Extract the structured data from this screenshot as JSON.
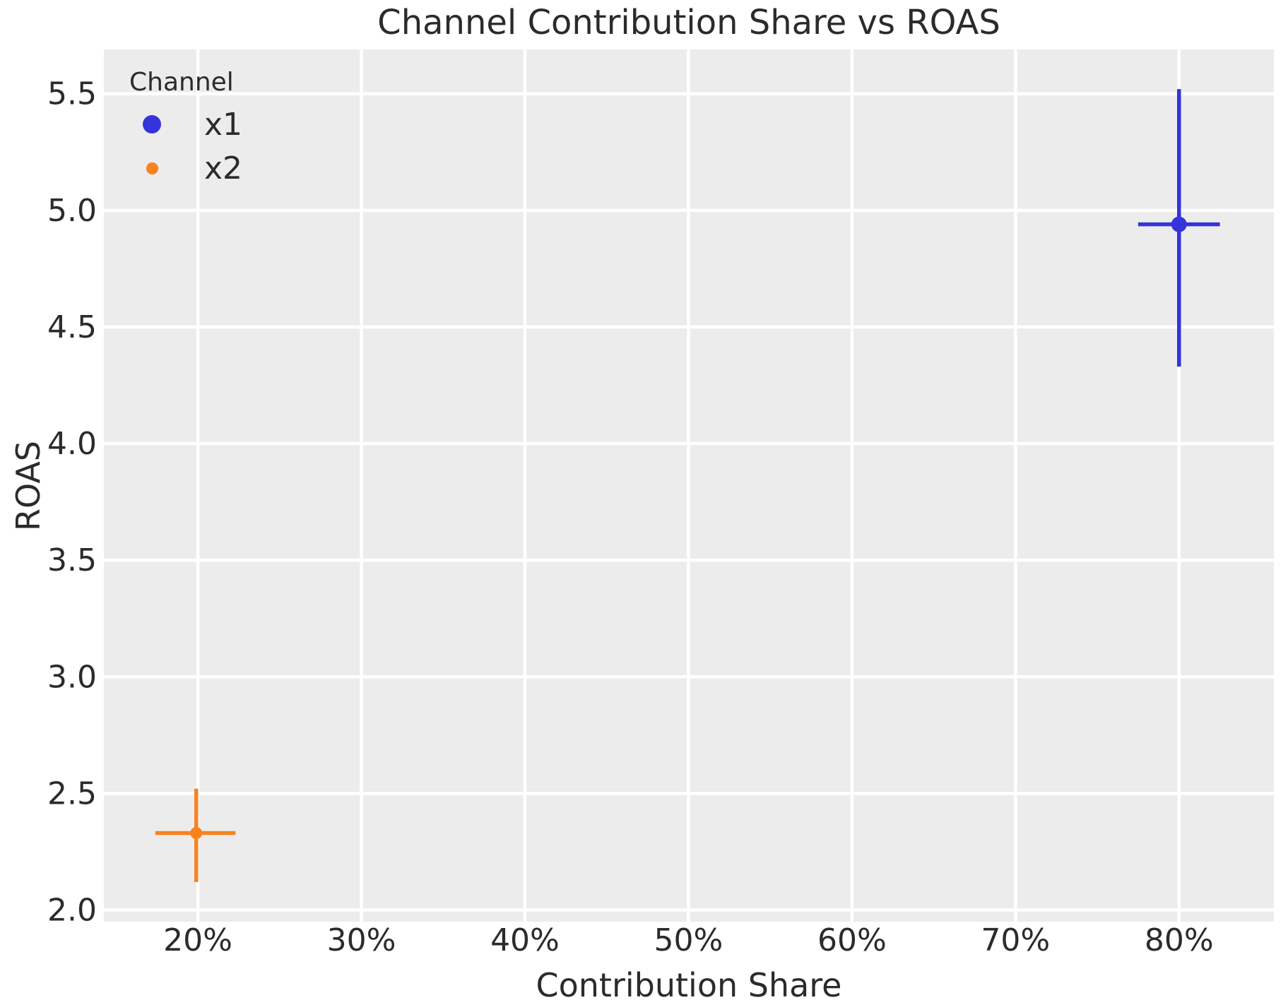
{
  "title": "Channel Contribution Share vs ROAS",
  "x_axis_label": "Contribution Share",
  "y_axis_label": "ROAS",
  "legend": {
    "title": "Channel",
    "position": "upper-left",
    "items": [
      {
        "label": "x1",
        "color": "#3533db",
        "marker_diameter": 26
      },
      {
        "label": "x2",
        "color": "#f8821e",
        "marker_diameter": 17
      }
    ]
  },
  "chart_data": {
    "type": "scatter",
    "title": "Channel Contribution Share vs ROAS",
    "xlabel": "Contribution Share",
    "ylabel": "ROAS",
    "grid": true,
    "plot_bg_color": "#ececec",
    "grid_color": "#ffffff",
    "text_color": "#2b2b2b",
    "xlim": [
      14.25,
      85.8
    ],
    "ylim": [
      1.95,
      5.69
    ],
    "x_unit": "percent",
    "x_ticks": [
      {
        "value": 20,
        "label": "20%"
      },
      {
        "value": 30,
        "label": "30%"
      },
      {
        "value": 40,
        "label": "40%"
      },
      {
        "value": 50,
        "label": "50%"
      },
      {
        "value": 60,
        "label": "60%"
      },
      {
        "value": 70,
        "label": "70%"
      },
      {
        "value": 80,
        "label": "80%"
      }
    ],
    "y_ticks": [
      {
        "value": 2.0,
        "label": "2.0"
      },
      {
        "value": 2.5,
        "label": "2.5"
      },
      {
        "value": 3.0,
        "label": "3.0"
      },
      {
        "value": 3.5,
        "label": "3.5"
      },
      {
        "value": 4.0,
        "label": "4.0"
      },
      {
        "value": 4.5,
        "label": "4.5"
      },
      {
        "value": 5.0,
        "label": "5.0"
      },
      {
        "value": 5.5,
        "label": "5.5"
      }
    ],
    "series": [
      {
        "name": "x1",
        "color": "#3533db",
        "marker_radius": 11,
        "errorbar_width": 5.5,
        "points": [
          {
            "x": 80.0,
            "y": 4.94,
            "x_lo": 77.5,
            "x_hi": 82.5,
            "y_lo": 4.33,
            "y_hi": 5.52
          }
        ]
      },
      {
        "name": "x2",
        "color": "#f8821e",
        "marker_radius": 8.5,
        "errorbar_width": 5.5,
        "points": [
          {
            "x": 19.9,
            "y": 2.33,
            "x_lo": 17.4,
            "x_hi": 22.3,
            "y_lo": 2.12,
            "y_hi": 2.52
          }
        ]
      }
    ]
  }
}
